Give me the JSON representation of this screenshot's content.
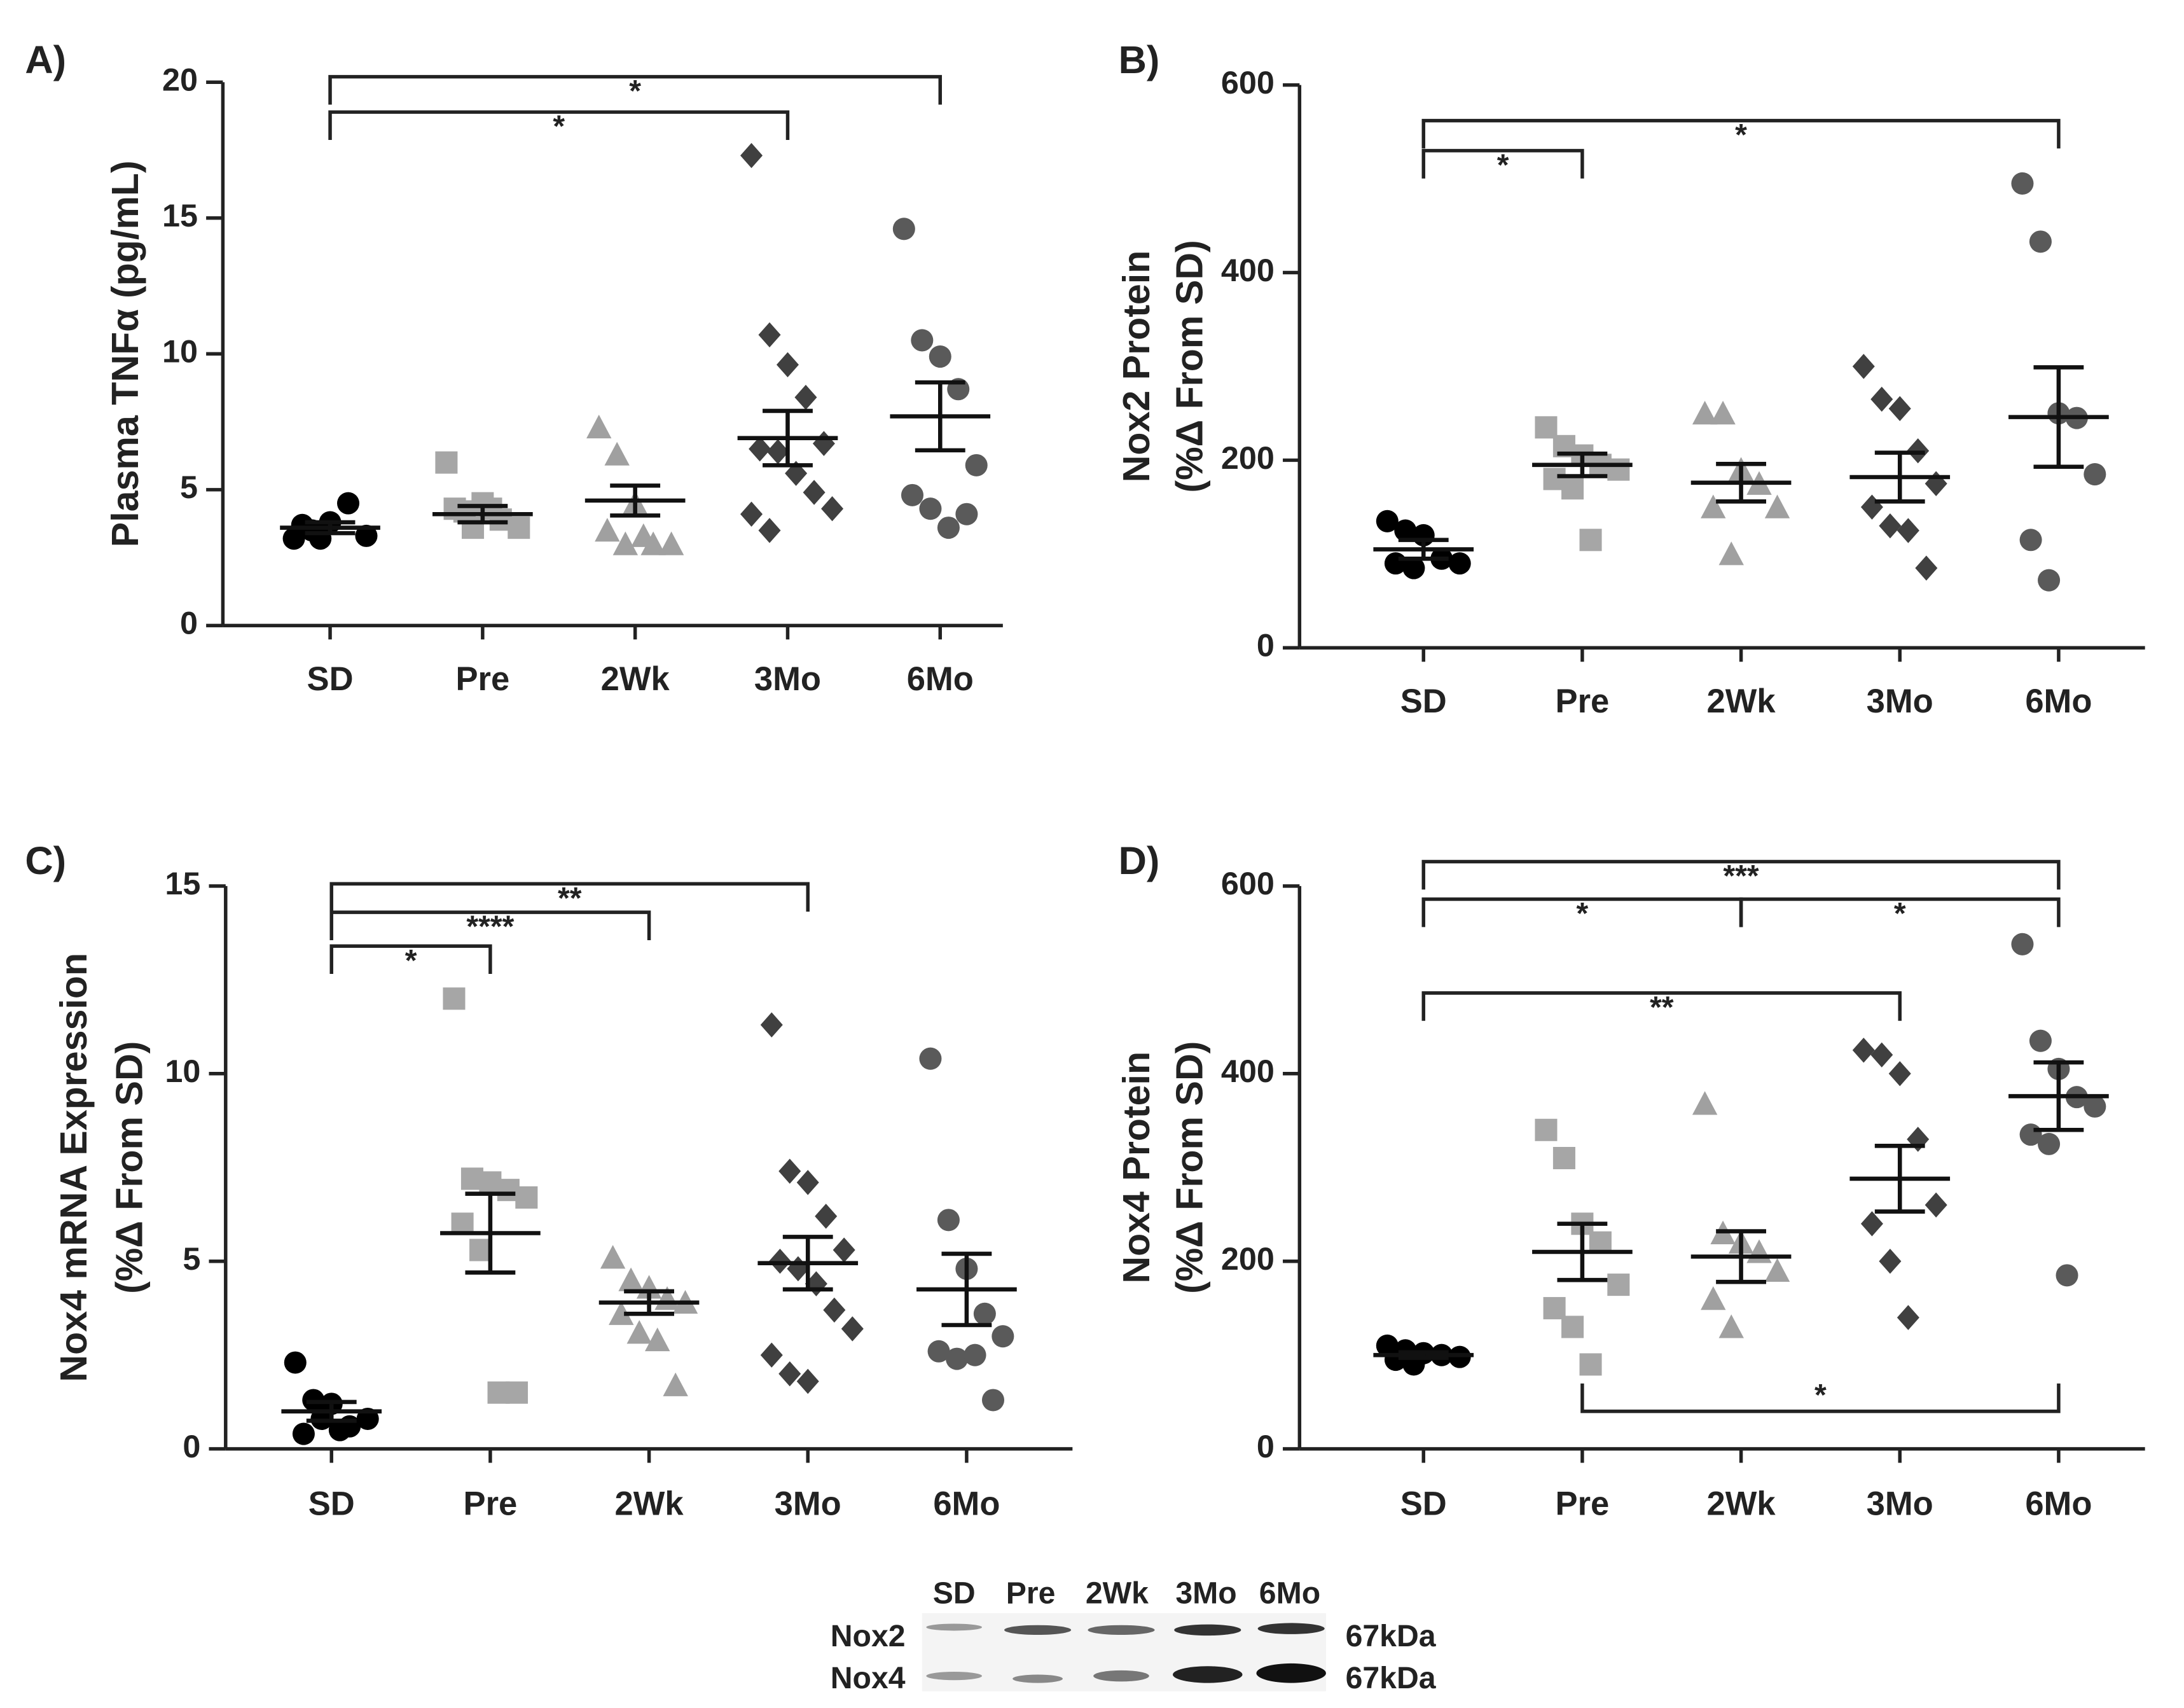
{
  "chart_data": [
    {
      "type": "dot",
      "title": "A)",
      "ylabel": [
        "Plasma TNFα (pg/mL)"
      ],
      "categories": [
        "SD",
        "Pre",
        "2Wk",
        "3Mo",
        "6Mo"
      ],
      "colors": [
        "#000000",
        "#a6a6a6",
        "#a0a0a0",
        "#404040",
        "#5a5a5a"
      ],
      "markers": [
        "circle",
        "square",
        "triangle",
        "diamond",
        "circle"
      ],
      "points": [
        [
          3.2,
          3.5,
          3.8,
          4.5,
          3.3,
          3.7,
          3.2
        ],
        [
          6.0,
          4.2,
          4.5,
          3.9,
          3.6,
          4.3,
          3.6,
          4.3
        ],
        [
          7.3,
          6.3,
          4.5,
          3.0,
          3.0,
          3.5,
          3.0,
          3.3
        ],
        [
          17.3,
          10.7,
          9.6,
          8.4,
          6.7,
          6.5,
          6.4,
          5.6,
          4.9,
          4.3,
          4.1,
          3.5
        ],
        [
          14.6,
          10.5,
          9.9,
          8.7,
          5.9,
          4.8,
          4.3,
          3.6,
          4.1
        ]
      ],
      "means": [
        3.6,
        4.1,
        4.6,
        6.9,
        7.7
      ],
      "sems": [
        0.2,
        0.3,
        0.55,
        1.0,
        1.25
      ],
      "ylim": [
        0,
        20
      ],
      "yticks": [
        0,
        5,
        10,
        15,
        20
      ],
      "brackets": [
        {
          "from": "SD",
          "to": "6Mo",
          "y": 20.2,
          "label": "*"
        },
        {
          "from": "SD",
          "to": "3Mo",
          "y": 18.9,
          "label": "*"
        }
      ]
    },
    {
      "type": "dot",
      "title": "B)",
      "ylabel": [
        "Nox2 Protein",
        "(%Δ From SD)"
      ],
      "categories": [
        "SD",
        "Pre",
        "2Wk",
        "3Mo",
        "6Mo"
      ],
      "colors": [
        "#000000",
        "#a6a6a6",
        "#a0a0a0",
        "#404040",
        "#5a5a5a"
      ],
      "markers": [
        "circle",
        "square",
        "triangle",
        "diamond",
        "circle"
      ],
      "points": [
        [
          135,
          125,
          120,
          95,
          90,
          90,
          85
        ],
        [
          235,
          215,
          205,
          195,
          190,
          180,
          170,
          115
        ],
        [
          250,
          250,
          190,
          175,
          150,
          150,
          100
        ],
        [
          300,
          265,
          255,
          210,
          175,
          150,
          130,
          125,
          85
        ],
        [
          495,
          433,
          250,
          245,
          185,
          115,
          72
        ]
      ],
      "means": [
        105,
        195,
        176,
        182,
        246
      ],
      "sems": [
        10,
        12,
        20,
        26,
        53
      ],
      "ylim": [
        0,
        600
      ],
      "yticks": [
        0,
        200,
        400,
        600
      ],
      "brackets": [
        {
          "from": "SD",
          "to": "Pre",
          "y": 530,
          "label": "*"
        },
        {
          "from": "SD",
          "to": "6Mo",
          "y": 562,
          "label": "*"
        }
      ]
    },
    {
      "type": "dot",
      "title": "C)",
      "ylabel": [
        "Nox4 mRNA Expression",
        "(%Δ From SD)"
      ],
      "categories": [
        "SD",
        "Pre",
        "2Wk",
        "3Mo",
        "6Mo"
      ],
      "colors": [
        "#000000",
        "#a6a6a6",
        "#a0a0a0",
        "#404040",
        "#5a5a5a"
      ],
      "markers": [
        "circle",
        "square",
        "triangle",
        "diamond",
        "circle"
      ],
      "points": [
        [
          2.3,
          1.3,
          1.2,
          0.6,
          0.8,
          0.4,
          0.8,
          0.5
        ],
        [
          12.0,
          7.2,
          7.1,
          6.9,
          6.7,
          6.0,
          5.3,
          1.5,
          1.5
        ],
        [
          5.1,
          4.5,
          4.3,
          4.0,
          3.9,
          3.6,
          3.1,
          2.9,
          1.7
        ],
        [
          11.3,
          7.4,
          7.1,
          6.2,
          5.3,
          5.0,
          4.8,
          4.4,
          3.7,
          3.2,
          2.5,
          2.0,
          1.8
        ],
        [
          10.4,
          6.1,
          4.8,
          3.6,
          3.0,
          2.6,
          2.4,
          2.5,
          1.3
        ]
      ],
      "means": [
        1.0,
        5.75,
        3.9,
        4.95,
        4.25
      ],
      "sems": [
        0.25,
        1.05,
        0.3,
        0.7,
        0.95
      ],
      "ylim": [
        0,
        15
      ],
      "yticks": [
        0,
        5,
        10,
        15
      ],
      "brackets": [
        {
          "from": "SD",
          "to": "3Mo",
          "y": 15.06,
          "label": "**"
        },
        {
          "from": "SD",
          "to": "2Wk",
          "y": 14.3,
          "label": "****"
        },
        {
          "from": "SD",
          "to": "Pre",
          "y": 13.4,
          "label": "*"
        }
      ]
    },
    {
      "type": "dot",
      "title": "D)",
      "ylabel": [
        "Nox4 Protein",
        "(%Δ From SD)"
      ],
      "categories": [
        "SD",
        "Pre",
        "2Wk",
        "3Mo",
        "6Mo"
      ],
      "colors": [
        "#000000",
        "#a6a6a6",
        "#a0a0a0",
        "#404040",
        "#5a5a5a"
      ],
      "markers": [
        "circle",
        "square",
        "triangle",
        "diamond",
        "circle"
      ],
      "points": [
        [
          110,
          105,
          102,
          100,
          98,
          95,
          90
        ],
        [
          340,
          310,
          240,
          220,
          175,
          150,
          130,
          90
        ],
        [
          368,
          230,
          220,
          210,
          190,
          160,
          130
        ],
        [
          425,
          420,
          400,
          330,
          260,
          240,
          200,
          140
        ],
        [
          538,
          435,
          405,
          375,
          365,
          335,
          325,
          185
        ]
      ],
      "means": [
        100,
        210,
        205,
        288,
        376
      ],
      "sems": [
        3,
        30,
        27,
        35,
        36
      ],
      "ylim": [
        0,
        600
      ],
      "yticks": [
        0,
        200,
        400,
        600
      ],
      "brackets": [
        {
          "from": "SD",
          "to": "6Mo",
          "y": 626,
          "label": "***"
        },
        {
          "from": "SD",
          "to": "2Wk",
          "y": 586,
          "label": "*"
        },
        {
          "from": "2Wk",
          "to": "6Mo",
          "y": 586,
          "label": "*"
        },
        {
          "from": "SD",
          "to": "3Mo",
          "y": 486,
          "label": "**"
        },
        {
          "from": "Pre",
          "to": "6Mo",
          "y": 40,
          "label": "*",
          "below": true
        }
      ]
    }
  ],
  "blot": {
    "lanes": [
      "SD",
      "Pre",
      "2Wk",
      "3Mo",
      "6Mo"
    ],
    "rows": [
      {
        "label": "Nox2",
        "size": "67kDa"
      },
      {
        "label": "Nox4",
        "size": "67kDa"
      }
    ]
  }
}
